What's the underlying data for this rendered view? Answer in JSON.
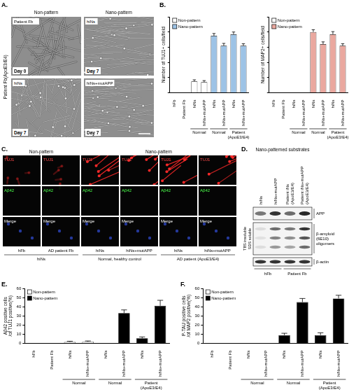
{
  "panels": {
    "A": {
      "letter": "A.",
      "headers": [
        "Non-pattern",
        "Nano-pattern"
      ],
      "row_label": "Patient Fb(ApoE3/E4)",
      "images": [
        {
          "label": "Patient Fb",
          "day": "Day 0"
        },
        {
          "label": "hiNs",
          "day": "Day 7"
        },
        {
          "label": "hiNs",
          "day": "Day 7"
        },
        {
          "label": "hiNs+mutAPP",
          "day": "Day 7"
        }
      ]
    },
    "B": {
      "letter": "B."
    },
    "C": {
      "letter": "C.",
      "rows": [
        "TUJ1",
        "Aβ42",
        "Merge"
      ],
      "sections": [
        {
          "title": "Non-pattern",
          "groups": [
            {
              "label": "hiNs",
              "columns": [
                "hFb",
                "AD patient Fb"
              ]
            }
          ]
        },
        {
          "title": "Nano-pattern",
          "groups": [
            {
              "label": "Normal, healthy control",
              "columns": [
                "hiNs",
                "hiNs+mutAPP"
              ]
            },
            {
              "label": "AD patient (ApoE3/E4)",
              "columns": [
                "hiNs",
                "hiNs+mutAPP"
              ]
            }
          ]
        }
      ]
    },
    "D": {
      "letter": "D.",
      "header": "Nano-patterned substrates",
      "side_label": "TBS insoluble SDS soluble",
      "bands": [
        "APP",
        "β-amyloid (6E10) oligomers",
        "β-actin"
      ],
      "groups": [
        {
          "label": "hFb",
          "lanes": [
            "hiNs",
            "hiNs+mutAPP"
          ]
        },
        {
          "label": "Patient Fb",
          "lanes": [
            "Patient iNs (ApoE3/E4)",
            "Patient iNs+mutAPP (ApoE3/E4)"
          ]
        }
      ]
    },
    "E": {
      "letter": "E."
    },
    "F": {
      "letter": "F."
    }
  },
  "chart_data": [
    {
      "type": "bar",
      "y_label": "Number of TUJ1+ cells/field",
      "categories": [
        "hFb",
        "Patient Fb",
        "hiNs",
        "hiNs+mutAPP",
        "hiNs",
        "hiNs+mutAPP",
        "hiNs",
        "hiNs+mutAPP"
      ],
      "group_labels": [
        null,
        null,
        "Normal",
        null,
        "Normal",
        null,
        "Patient (ApoE3/E4)",
        null
      ],
      "series": [
        {
          "name": "Non-pattern",
          "color": "#ffffff",
          "values": [
            0,
            0,
            15,
            14,
            null,
            null,
            null,
            null
          ],
          "errors": [
            0,
            0,
            2,
            2,
            null,
            null,
            null,
            null
          ]
        },
        {
          "name": "Nano-pattern",
          "color": "#9dc3e6",
          "values": [
            null,
            null,
            null,
            null,
            75,
            62,
            77,
            62
          ],
          "errors": [
            null,
            null,
            null,
            null,
            3,
            3,
            3,
            2.5
          ]
        }
      ],
      "ylim": [
        0,
        100
      ],
      "yticks": [
        0,
        20,
        40,
        60,
        80,
        100
      ],
      "grid": false,
      "legend": "top-left",
      "tick_labels": "x"
    },
    {
      "type": "bar",
      "y_label": "Number of MAP2+ cells/field",
      "categories": [
        "hFb",
        "Patient Fb",
        "hiNs",
        "hiNs+mutAPP",
        "hiNs",
        "hiNs+mutAPP",
        "hiNs",
        "hiNs+mutAPP"
      ],
      "group_labels": [
        null,
        null,
        "Normal",
        null,
        "Normal",
        null,
        "Patient (ApoE3/E4)",
        null
      ],
      "series": [
        {
          "name": "Non-pattern",
          "color": "#ffffff",
          "values": [
            0,
            0,
            0,
            0,
            null,
            null,
            null,
            null
          ],
          "errors": [
            0,
            0,
            0,
            0,
            null,
            null,
            null,
            null
          ]
        },
        {
          "name": "Nano-pattern",
          "color": "#eaa89f",
          "values": [
            null,
            null,
            null,
            null,
            80,
            64,
            77,
            62
          ],
          "errors": [
            null,
            null,
            null,
            null,
            3,
            3,
            3.5,
            2.5
          ]
        }
      ],
      "ylim": [
        0,
        100
      ],
      "yticks": [
        0,
        20,
        40,
        60,
        80,
        100
      ],
      "grid": false,
      "legend": "top-left",
      "tick_labels": "x"
    },
    {
      "type": "bar",
      "y_label": [
        "Aβ42 positive cells",
        "/of TUJ1 positive(%)"
      ],
      "categories": [
        "hFb",
        "Patient Fb",
        "hiNs",
        "hiNs+mutAPP",
        "hiNs",
        "hiNs+mutAPP",
        "hiNs",
        "hiNs+mutAPP"
      ],
      "group_labels": [
        null,
        null,
        "Normal",
        null,
        "Normal",
        null,
        "Patient (ApoE3/E4)",
        null
      ],
      "series": [
        {
          "name": "Non-pattern",
          "color": "#ffffff",
          "values": [
            0,
            0,
            1.5,
            1.8,
            null,
            null,
            null,
            null
          ],
          "errors": [
            0,
            0,
            0.8,
            0.8,
            null,
            null,
            null,
            null
          ]
        },
        {
          "name": "Nano-pattern",
          "color": "#000000",
          "values": [
            null,
            null,
            null,
            null,
            0,
            33,
            5.5,
            41
          ],
          "errors": [
            null,
            null,
            null,
            null,
            0,
            3.5,
            1.5,
            6
          ]
        }
      ],
      "ylim": [
        0,
        60
      ],
      "yticks": [
        0,
        10,
        20,
        30,
        40,
        50,
        60
      ],
      "grid": false,
      "legend": "top-left"
    },
    {
      "type": "bar",
      "y_label": [
        "P-TAU positive cells",
        "/of MAP2 positive(%)"
      ],
      "categories": [
        "hFb",
        "Patient Fb",
        "hiNs",
        "hiNs+mutAPP",
        "hiNs",
        "hiNs+mutAPP",
        "hiNs",
        "hiNs+mutAPP"
      ],
      "group_labels": [
        null,
        null,
        "Normal",
        null,
        "Normal",
        null,
        "Patient (ApoE3/E4)",
        null
      ],
      "series": [
        {
          "name": "Non-pattern",
          "color": "#ffffff",
          "values": [
            0,
            0,
            0,
            0,
            null,
            null,
            null,
            null
          ],
          "errors": [
            0,
            0,
            0,
            0,
            null,
            null,
            null,
            null
          ]
        },
        {
          "name": "Nano-pattern",
          "color": "#000000",
          "values": [
            null,
            null,
            null,
            null,
            9,
            45,
            9,
            49
          ],
          "errors": [
            null,
            null,
            null,
            null,
            2,
            4,
            2.5,
            3.5
          ]
        }
      ],
      "ylim": [
        0,
        60
      ],
      "yticks": [
        0,
        10,
        20,
        30,
        40,
        50,
        60
      ],
      "grid": false,
      "legend": "top-left"
    }
  ]
}
